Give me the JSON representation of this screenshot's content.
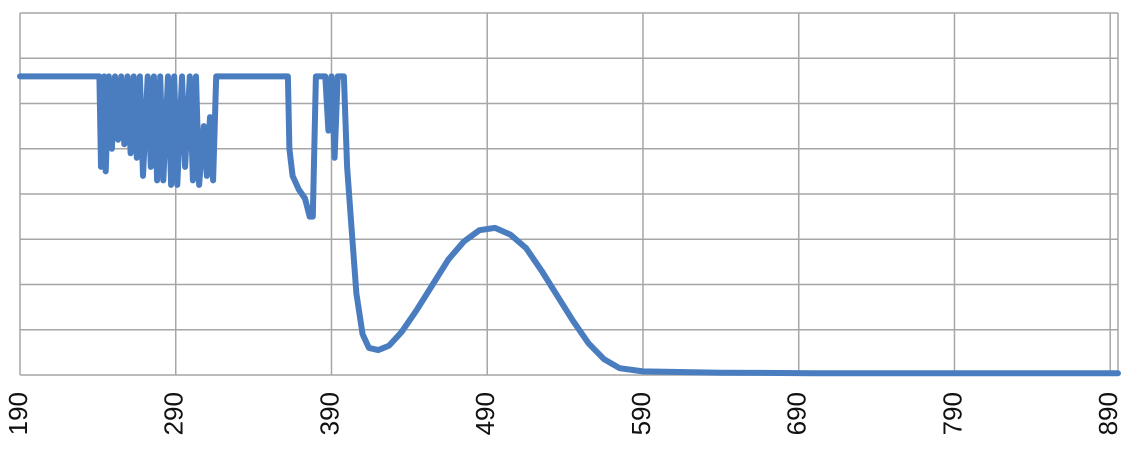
{
  "chart_data": {
    "type": "line",
    "title": "",
    "xlabel": "",
    "ylabel": "",
    "xlim": [
      190,
      895
    ],
    "ylim": [
      0,
      8
    ],
    "x_ticks": [
      190,
      290,
      390,
      490,
      590,
      690,
      790,
      890
    ],
    "x_tick_labels": [
      "190",
      "290",
      "390",
      "490",
      "590",
      "690",
      "790",
      "890"
    ],
    "y_gridlines": [
      0,
      1,
      2,
      3,
      4,
      5,
      6,
      7,
      8
    ],
    "grid": true,
    "legend": "none",
    "line_color": "#4a7dbf",
    "series": [
      {
        "values": [
          [
            190,
            6.6
          ],
          [
            241,
            6.6
          ],
          [
            242,
            4.6
          ],
          [
            244,
            6.6
          ],
          [
            245,
            4.5
          ],
          [
            247,
            6.6
          ],
          [
            249,
            5.0
          ],
          [
            251,
            6.6
          ],
          [
            253,
            5.2
          ],
          [
            255,
            6.6
          ],
          [
            257,
            5.1
          ],
          [
            259,
            6.6
          ],
          [
            261,
            4.9
          ],
          [
            263,
            6.6
          ],
          [
            265,
            4.8
          ],
          [
            267,
            6.6
          ],
          [
            269,
            4.4
          ],
          [
            272,
            6.6
          ],
          [
            274,
            4.6
          ],
          [
            276,
            6.6
          ],
          [
            278,
            4.3
          ],
          [
            280,
            6.6
          ],
          [
            282,
            4.3
          ],
          [
            285,
            6.6
          ],
          [
            287,
            4.2
          ],
          [
            289,
            6.6
          ],
          [
            291,
            4.2
          ],
          [
            294,
            6.6
          ],
          [
            296,
            4.6
          ],
          [
            299,
            6.6
          ],
          [
            301,
            4.3
          ],
          [
            303,
            6.6
          ],
          [
            305,
            4.2
          ],
          [
            308,
            5.5
          ],
          [
            310,
            4.4
          ],
          [
            312,
            5.7
          ],
          [
            314,
            4.3
          ],
          [
            316,
            6.6
          ],
          [
            362,
            6.6
          ],
          [
            363,
            5.0
          ],
          [
            365,
            4.4
          ],
          [
            369,
            4.1
          ],
          [
            373,
            3.9
          ],
          [
            376,
            3.5
          ],
          [
            378,
            3.5
          ],
          [
            380,
            6.6
          ],
          [
            386,
            6.6
          ],
          [
            388,
            5.4
          ],
          [
            390,
            6.6
          ],
          [
            392,
            4.8
          ],
          [
            394,
            6.6
          ],
          [
            398,
            6.6
          ],
          [
            400,
            4.6
          ],
          [
            403,
            3.2
          ],
          [
            406,
            1.8
          ],
          [
            410,
            0.9
          ],
          [
            414,
            0.6
          ],
          [
            420,
            0.55
          ],
          [
            427,
            0.65
          ],
          [
            435,
            0.95
          ],
          [
            445,
            1.45
          ],
          [
            455,
            2.0
          ],
          [
            465,
            2.55
          ],
          [
            475,
            2.95
          ],
          [
            485,
            3.2
          ],
          [
            495,
            3.25
          ],
          [
            505,
            3.1
          ],
          [
            515,
            2.8
          ],
          [
            525,
            2.3
          ],
          [
            535,
            1.75
          ],
          [
            545,
            1.2
          ],
          [
            555,
            0.7
          ],
          [
            565,
            0.35
          ],
          [
            575,
            0.15
          ],
          [
            590,
            0.08
          ],
          [
            640,
            0.05
          ],
          [
            700,
            0.04
          ],
          [
            800,
            0.04
          ],
          [
            895,
            0.04
          ]
        ]
      }
    ]
  }
}
